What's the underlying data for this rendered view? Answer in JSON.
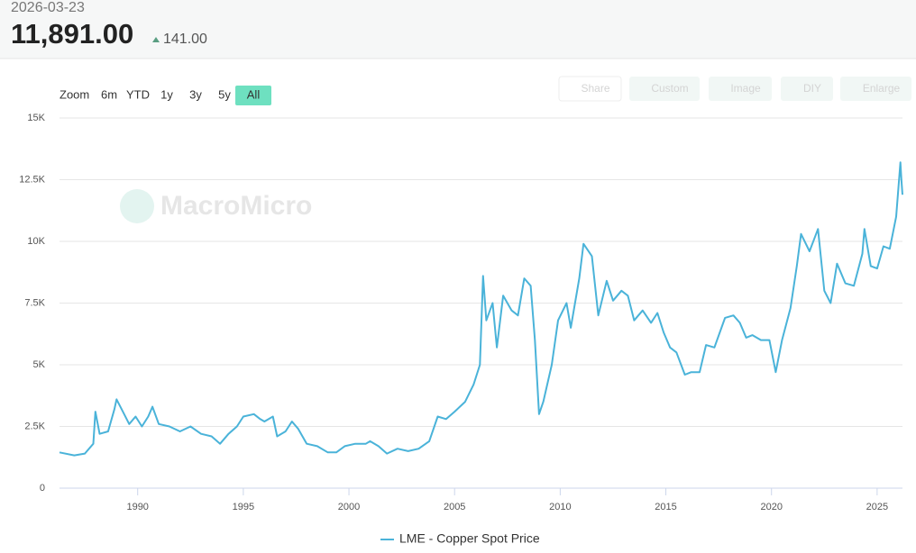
{
  "header": {
    "date": "2026-03-23",
    "value": "11,891.00",
    "change": "141.00"
  },
  "toolbar": {
    "zoom_label": "Zoom",
    "ranges": [
      "6m",
      "YTD",
      "1y",
      "3y",
      "5y",
      "All"
    ],
    "active_range": "All",
    "actions": [
      "Share",
      "Custom",
      "Image",
      "DIY",
      "Enlarge"
    ]
  },
  "watermark": "MacroMicro",
  "chart_data": {
    "type": "line",
    "x": [
      1986.3,
      1987.0,
      1987.5,
      1987.9,
      1988.0,
      1988.2,
      1988.6,
      1988.9,
      1989.0,
      1989.3,
      1989.6,
      1989.9,
      1990.2,
      1990.5,
      1990.7,
      1991.0,
      1991.5,
      1992.0,
      1992.5,
      1993.0,
      1993.5,
      1993.9,
      1994.3,
      1994.7,
      1995.0,
      1995.5,
      1995.8,
      1996.0,
      1996.4,
      1996.6,
      1997.0,
      1997.3,
      1997.6,
      1998.0,
      1998.5,
      1999.0,
      1999.4,
      1999.8,
      2000.3,
      2000.8,
      2001.0,
      2001.4,
      2001.8,
      2002.3,
      2002.8,
      2003.3,
      2003.8,
      2004.2,
      2004.6,
      2005.0,
      2005.5,
      2005.9,
      2006.2,
      2006.35,
      2006.5,
      2006.8,
      2007.0,
      2007.3,
      2007.7,
      2008.0,
      2008.3,
      2008.6,
      2008.8,
      2009.0,
      2009.2,
      2009.6,
      2009.9,
      2010.3,
      2010.5,
      2010.9,
      2011.1,
      2011.5,
      2011.8,
      2012.2,
      2012.5,
      2012.9,
      2013.2,
      2013.5,
      2013.9,
      2014.3,
      2014.6,
      2014.9,
      2015.2,
      2015.5,
      2015.9,
      2016.2,
      2016.6,
      2016.9,
      2017.3,
      2017.8,
      2018.2,
      2018.5,
      2018.8,
      2019.1,
      2019.5,
      2019.9,
      2020.2,
      2020.5,
      2020.9,
      2021.2,
      2021.4,
      2021.8,
      2022.2,
      2022.5,
      2022.8,
      2023.1,
      2023.5,
      2023.9,
      2024.3,
      2024.4,
      2024.7,
      2025.0,
      2025.3,
      2025.6,
      2025.9,
      2026.1,
      2026.15,
      2026.2
    ],
    "series": [
      {
        "name": "LME - Copper Spot Price",
        "color": "#4ab3d9",
        "values": [
          1450,
          1330,
          1400,
          1800,
          3100,
          2200,
          2300,
          3200,
          3600,
          3100,
          2600,
          2900,
          2500,
          2900,
          3300,
          2600,
          2500,
          2300,
          2500,
          2200,
          2100,
          1800,
          2200,
          2500,
          2900,
          3000,
          2800,
          2700,
          2900,
          2100,
          2300,
          2700,
          2400,
          1800,
          1700,
          1450,
          1450,
          1700,
          1800,
          1800,
          1900,
          1700,
          1400,
          1600,
          1500,
          1600,
          1900,
          2900,
          2800,
          3100,
          3500,
          4200,
          5000,
          8600,
          6800,
          7500,
          5700,
          7800,
          7200,
          7000,
          8500,
          8200,
          6000,
          3000,
          3500,
          5000,
          6800,
          7500,
          6500,
          8500,
          9900,
          9400,
          7000,
          8400,
          7600,
          8000,
          7800,
          6800,
          7200,
          6700,
          7100,
          6300,
          5700,
          5500,
          4600,
          4700,
          4700,
          5800,
          5700,
          6900,
          7000,
          6700,
          6100,
          6200,
          6000,
          6000,
          4700,
          6000,
          7300,
          9000,
          10300,
          9600,
          10500,
          8000,
          7500,
          9100,
          8300,
          8200,
          9500,
          10500,
          9000,
          8900,
          9800,
          9700,
          11000,
          13200,
          12500,
          11891
        ]
      }
    ],
    "xlim": [
      1986.3,
      2026.2
    ],
    "xticks": [
      1990,
      1995,
      2000,
      2005,
      2010,
      2015,
      2020,
      2025
    ],
    "ylim": [
      0,
      15000
    ],
    "yticks": [
      0,
      {
        "value": 2500,
        "label": "2.5K"
      },
      {
        "value": 5000,
        "label": "5K"
      },
      {
        "value": 7500,
        "label": "7.5K"
      },
      {
        "value": 10000,
        "label": "10K"
      },
      {
        "value": 12500,
        "label": "12.5K"
      },
      {
        "value": 15000,
        "label": "15K"
      }
    ],
    "grid": true
  }
}
